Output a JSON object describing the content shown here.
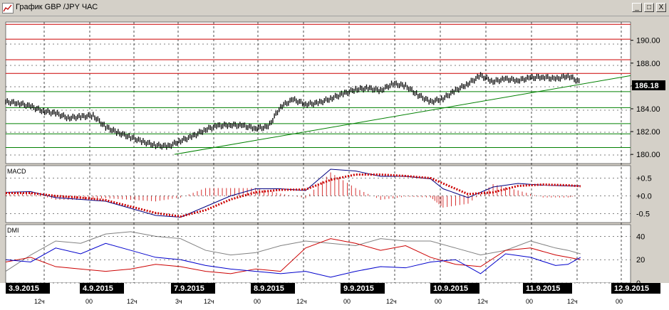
{
  "window": {
    "title": "График GBP /JPY  ЧАС",
    "btn_minimize": "_",
    "btn_restore": "□",
    "btn_close": "X"
  },
  "icons": [
    "chart-icon",
    "minimize-icon",
    "restore-icon",
    "close-icon"
  ],
  "colors": {
    "price_bar": "#000000",
    "trendline": "#008000",
    "resistance": "#cc0000",
    "support": "#008000",
    "macd_line": "#000080",
    "macd_signal": "#cc0000",
    "dmi_plus": "#0000cc",
    "dmi_minus": "#cc0000",
    "adx": "#808080"
  },
  "chart_data": [
    {
      "type": "line",
      "panel": "price",
      "ylim": [
        179.2,
        191.6
      ],
      "yticks": [
        "190.00",
        "188.00",
        "186.00",
        "184.00",
        "182.00",
        "180.00"
      ],
      "current_price_label": "186.18",
      "horizontal_lines": [
        {
          "y": 191.4,
          "color": "red"
        },
        {
          "y": 190.1,
          "color": "red"
        },
        {
          "y": 188.3,
          "color": "red"
        },
        {
          "y": 187.1,
          "color": "red"
        },
        {
          "y": 185.5,
          "color": "green"
        },
        {
          "y": 184.1,
          "color": "green"
        },
        {
          "y": 182.7,
          "color": "green"
        },
        {
          "y": 181.8,
          "color": "green"
        },
        {
          "y": 180.6,
          "color": "green"
        }
      ],
      "trendline": {
        "from": [
          0.27,
          180.0
        ],
        "to": [
          1.0,
          186.9
        ]
      },
      "x": [
        0,
        0.02,
        0.04,
        0.06,
        0.08,
        0.1,
        0.12,
        0.14,
        0.16,
        0.18,
        0.2,
        0.22,
        0.24,
        0.26,
        0.28,
        0.3,
        0.32,
        0.34,
        0.36,
        0.38,
        0.4,
        0.42,
        0.44,
        0.46,
        0.48,
        0.5,
        0.52,
        0.54,
        0.56,
        0.58,
        0.6,
        0.62,
        0.64,
        0.66,
        0.68,
        0.7,
        0.72,
        0.74,
        0.76,
        0.78,
        0.8,
        0.82,
        0.84,
        0.86,
        0.88,
        0.9,
        0.92
      ],
      "values": [
        184.6,
        184.5,
        184.2,
        183.8,
        183.6,
        183.2,
        183.3,
        183.4,
        182.4,
        181.9,
        181.5,
        181.1,
        180.8,
        180.7,
        181.2,
        181.6,
        182.2,
        182.5,
        182.6,
        182.5,
        182.3,
        182.4,
        184.2,
        184.8,
        184.4,
        184.5,
        184.9,
        185.3,
        185.7,
        185.8,
        185.6,
        186.2,
        186.0,
        185.2,
        184.6,
        184.9,
        185.6,
        186.2,
        186.9,
        186.4,
        186.6,
        186.5,
        186.7,
        186.8,
        186.6,
        186.9,
        186.3
      ]
    },
    {
      "type": "line",
      "panel": "macd",
      "title": "MACD",
      "ylim": [
        -0.75,
        0.85
      ],
      "yticks": [
        "+0.5",
        "+0.0",
        "-0.5"
      ],
      "x": [
        0,
        0.04,
        0.08,
        0.12,
        0.16,
        0.2,
        0.24,
        0.28,
        0.32,
        0.36,
        0.4,
        0.44,
        0.48,
        0.52,
        0.56,
        0.6,
        0.64,
        0.68,
        0.7,
        0.74,
        0.78,
        0.82,
        0.86,
        0.9,
        0.92
      ],
      "series": [
        {
          "values": [
            0.1,
            0.12,
            -0.05,
            -0.1,
            -0.15,
            -0.35,
            -0.55,
            -0.6,
            -0.3,
            0.0,
            0.2,
            0.2,
            0.15,
            0.75,
            0.7,
            0.55,
            0.55,
            0.48,
            0.2,
            -0.05,
            0.25,
            0.35,
            0.3,
            0.28,
            0.28
          ]
        },
        {
          "values": [
            0.08,
            0.08,
            0.0,
            -0.05,
            -0.12,
            -0.3,
            -0.48,
            -0.58,
            -0.4,
            -0.1,
            0.1,
            0.17,
            0.18,
            0.45,
            0.6,
            0.6,
            0.56,
            0.5,
            0.35,
            0.05,
            0.1,
            0.28,
            0.32,
            0.3,
            0.27
          ]
        }
      ]
    },
    {
      "type": "line",
      "panel": "dmi",
      "title": "DMI",
      "ylim": [
        0,
        50
      ],
      "yticks": [
        "40",
        "20",
        "0"
      ],
      "x": [
        0,
        0.04,
        0.08,
        0.12,
        0.16,
        0.2,
        0.24,
        0.28,
        0.32,
        0.36,
        0.4,
        0.44,
        0.48,
        0.52,
        0.56,
        0.6,
        0.64,
        0.68,
        0.72,
        0.76,
        0.8,
        0.84,
        0.88,
        0.9,
        0.92
      ],
      "series": [
        {
          "values": [
            20,
            18,
            30,
            25,
            34,
            28,
            22,
            20,
            15,
            12,
            10,
            8,
            10,
            5,
            10,
            14,
            13,
            18,
            20,
            8,
            25,
            22,
            15,
            16,
            22
          ]
        },
        {
          "values": [
            18,
            22,
            14,
            12,
            10,
            12,
            16,
            14,
            10,
            8,
            12,
            10,
            30,
            38,
            34,
            28,
            32,
            22,
            16,
            14,
            28,
            30,
            24,
            22,
            20
          ]
        },
        {
          "values": [
            10,
            24,
            36,
            34,
            42,
            44,
            40,
            38,
            28,
            24,
            26,
            32,
            36,
            34,
            32,
            38,
            36,
            36,
            30,
            24,
            28,
            36,
            30,
            28,
            25
          ]
        }
      ]
    }
  ],
  "time_axis": {
    "date_labels": [
      "3.9.2015",
      "4.9.2015",
      "7.9.2015",
      "8.9.2015",
      "9.9.2015",
      "10.9.2015",
      "11.9.2015",
      "12.9.2015"
    ],
    "hour_labels": [
      "12ч",
      "00",
      "12ч",
      "3ч",
      "12ч",
      "00",
      "12ч",
      "00",
      "12ч",
      "00",
      "12ч",
      "00",
      "12ч",
      "00"
    ]
  }
}
